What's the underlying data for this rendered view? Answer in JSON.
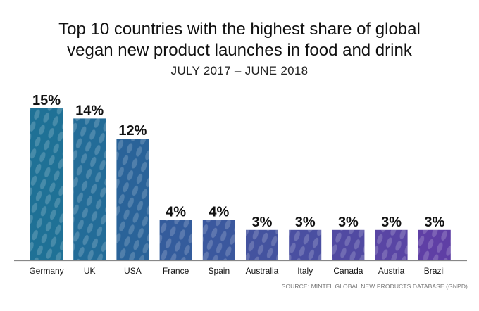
{
  "chart_data": {
    "type": "bar",
    "title": "Top 10 countries with the highest share of global vegan new product launches in food and drink",
    "title_lines": [
      "Top 10 countries with the highest share of global",
      "vegan new product launches in food and drink"
    ],
    "subtitle": "JULY 2017 – JUNE 2018",
    "source": "SOURCE: MINTEL GLOBAL NEW PRODUCTS DATABASE (GNPD)",
    "categories": [
      "Germany",
      "UK",
      "USA",
      "France",
      "Spain",
      "Australia",
      "Italy",
      "Canada",
      "Austria",
      "Brazil"
    ],
    "values": [
      15,
      14,
      12,
      4,
      4,
      3,
      3,
      3,
      3,
      3
    ],
    "data_labels": [
      "15%",
      "14%",
      "12%",
      "4%",
      "4%",
      "3%",
      "3%",
      "3%",
      "3%",
      "3%"
    ],
    "unit": "%",
    "ylim": [
      0,
      15
    ],
    "grid": false,
    "legend": "none",
    "colors": [
      "#1f7196",
      "#236c98",
      "#2a6399",
      "#345c9c",
      "#3b589e",
      "#44539f",
      "#4a4fa1",
      "#514aa2",
      "#5945a4",
      "#5f3fa5"
    ]
  }
}
